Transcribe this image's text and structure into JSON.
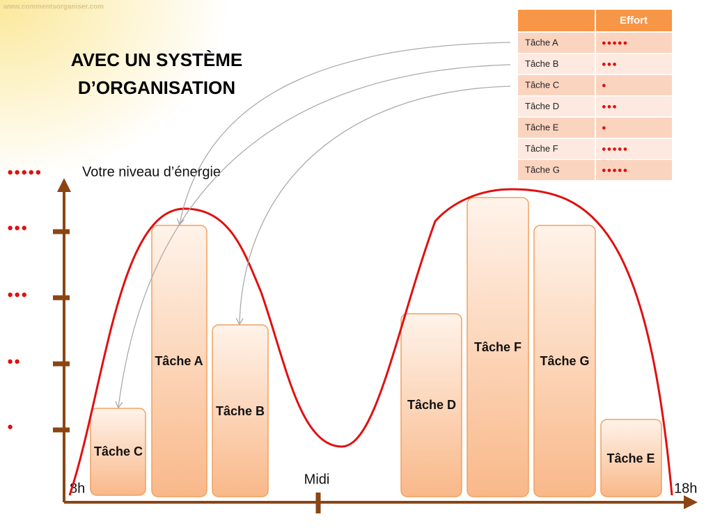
{
  "watermark": "www.commentsorganiser.com",
  "title": {
    "line1": "AVEC UN SYSTÈME",
    "line2": "D’ORGANISATION"
  },
  "axis": {
    "y_label": "Votre niveau d’énergie",
    "x_start": "8h",
    "x_mid": "Midi",
    "x_end": "18h",
    "levels": [
      "●●●●●",
      "●●●",
      "●●●",
      "●●",
      "●"
    ]
  },
  "table": {
    "header": "Effort",
    "rows": [
      [
        "Tâche A",
        "●●●●●"
      ],
      [
        "Tâche B",
        "●●●"
      ],
      [
        "Tâche C",
        "●"
      ],
      [
        "Tâche D",
        "●●●"
      ],
      [
        "Tâche E",
        "●"
      ],
      [
        "Tâche F",
        "●●●●●"
      ],
      [
        "Tâche G",
        "●●●●●"
      ]
    ]
  },
  "tasks": [
    "Tâche C",
    "Tâche A",
    "Tâche B",
    "Tâche D",
    "Tâche F",
    "Tâche G",
    "Tâche E"
  ]
}
